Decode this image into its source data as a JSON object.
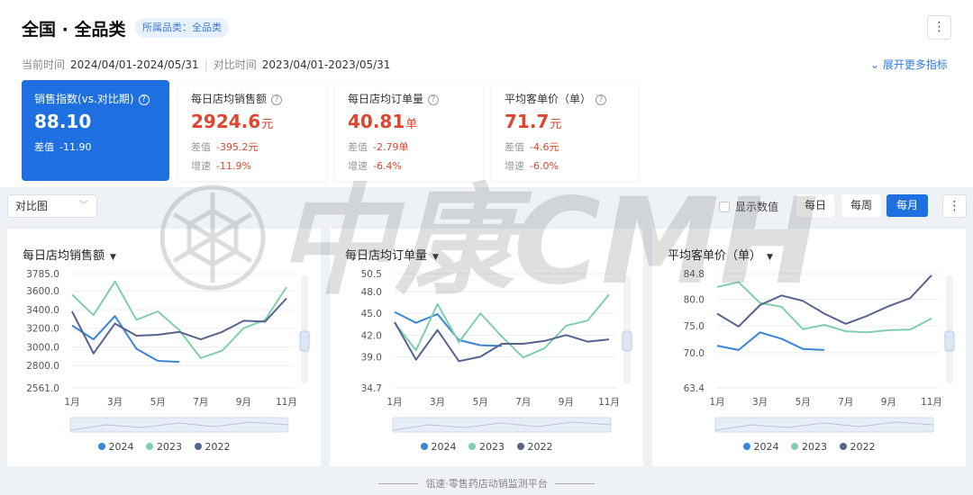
{
  "header": {
    "title": "全国 · 全品类",
    "category_badge": "所属品类：全品类",
    "more_icon": "⋮"
  },
  "timebar": {
    "current_label": "当前时间",
    "current_value": "2024/04/01-2024/05/31",
    "compare_label": "对比时间",
    "compare_value": "2023/04/01-2023/05/31",
    "expand_label": "展开更多指标"
  },
  "kpis": [
    {
      "label": "销售指数(vs.对比期)",
      "value": "88.10",
      "unit": "",
      "diff_label": "差值",
      "diff": "-11.90",
      "growth_label": "",
      "growth": ""
    },
    {
      "label": "每日店均销售额",
      "value": "2924.6",
      "unit": "元",
      "diff_label": "差值",
      "diff": "-395.2元",
      "growth_label": "增速",
      "growth": "-11.9%"
    },
    {
      "label": "每日店均订单量",
      "value": "40.81",
      "unit": "单",
      "diff_label": "差值",
      "diff": "-2.79单",
      "growth_label": "增速",
      "growth": "-6.4%"
    },
    {
      "label": "平均客单价（单）",
      "value": "71.7",
      "unit": "元",
      "diff_label": "差值",
      "diff": "-4.6元",
      "growth_label": "增速",
      "growth": "-6.0%"
    }
  ],
  "controls": {
    "compare_select": "对比图",
    "show_values_label": "显示数值",
    "segments": [
      "每日",
      "每周",
      "每月"
    ],
    "active_segment": "每月"
  },
  "watermark_text": "中康CMH",
  "footer": "瓴速·零售药店动销监测平台",
  "colors": {
    "s2024": "#3a86d6",
    "s2023": "#7fcfae",
    "s2022": "#57638f",
    "primary": "#1e6fe0",
    "negative": "#e0452f"
  },
  "legend": [
    "2024",
    "2023",
    "2022"
  ],
  "chart_data": [
    {
      "type": "line",
      "title": "每日店均销售额",
      "x": [
        "1月",
        "2月",
        "3月",
        "4月",
        "5月",
        "6月",
        "7月",
        "8月",
        "9月",
        "10月",
        "11月"
      ],
      "x_tick_labels": [
        "1月",
        "3月",
        "5月",
        "7月",
        "9月",
        "11月"
      ],
      "y_ticks": [
        3785.0,
        3600.0,
        3400.0,
        3200.0,
        3000.0,
        2800.0,
        2561.0
      ],
      "y_tick_labels": [
        "3785.0",
        "3600.0",
        "3400.0",
        "3200.0",
        "3000.0",
        "2800.0",
        "2561.0"
      ],
      "ylim": [
        2561.0,
        3785.0
      ],
      "grid": true,
      "series": [
        {
          "name": "2024",
          "values": [
            3230,
            3080,
            3330,
            2980,
            2850,
            2840,
            null,
            null,
            null,
            null,
            null
          ]
        },
        {
          "name": "2023",
          "values": [
            3560,
            3340,
            3700,
            3290,
            3380,
            3180,
            2880,
            2960,
            3200,
            3290,
            3640
          ]
        },
        {
          "name": "2022",
          "values": [
            3380,
            2930,
            3250,
            3120,
            3130,
            3160,
            3080,
            3160,
            3280,
            3270,
            3520
          ]
        }
      ]
    },
    {
      "type": "line",
      "title": "每日店均订单量",
      "x": [
        "1月",
        "2月",
        "3月",
        "4月",
        "5月",
        "6月",
        "7月",
        "8月",
        "9月",
        "10月",
        "11月"
      ],
      "x_tick_labels": [
        "1月",
        "3月",
        "5月",
        "7月",
        "9月",
        "11月"
      ],
      "y_ticks": [
        50.5,
        48.0,
        45.0,
        42.0,
        39.0,
        34.7
      ],
      "y_tick_labels": [
        "50.5",
        "48.0",
        "45.0",
        "42.0",
        "39.0",
        "34.7"
      ],
      "ylim": [
        34.7,
        50.5
      ],
      "grid": true,
      "series": [
        {
          "name": "2024",
          "values": [
            45.2,
            43.7,
            44.9,
            41.3,
            40.6,
            40.5,
            null,
            null,
            null,
            null,
            null
          ]
        },
        {
          "name": "2023",
          "values": [
            43.7,
            39.9,
            46.3,
            41.0,
            45.0,
            41.8,
            38.9,
            40.2,
            43.3,
            44.0,
            47.6
          ]
        },
        {
          "name": "2022",
          "values": [
            43.8,
            38.6,
            42.7,
            38.4,
            39.0,
            40.8,
            40.8,
            41.2,
            42.0,
            41.1,
            41.4
          ]
        }
      ]
    },
    {
      "type": "line",
      "title": "平均客单价（单）",
      "x": [
        "1月",
        "2月",
        "3月",
        "4月",
        "5月",
        "6月",
        "7月",
        "8月",
        "9月",
        "10月",
        "11月"
      ],
      "x_tick_labels": [
        "1月",
        "3月",
        "5月",
        "7月",
        "9月",
        "11月"
      ],
      "y_ticks": [
        84.8,
        80.0,
        75.0,
        70.0,
        63.4
      ],
      "y_tick_labels": [
        "84.8",
        "80.0",
        "75.0",
        "70.0",
        "63.4"
      ],
      "ylim": [
        63.4,
        84.8
      ],
      "grid": true,
      "series": [
        {
          "name": "2024",
          "values": [
            71.3,
            70.5,
            73.8,
            72.6,
            70.7,
            70.5,
            null,
            null,
            null,
            null,
            null
          ]
        },
        {
          "name": "2023",
          "values": [
            82.3,
            83.2,
            79.3,
            78.6,
            74.4,
            75.2,
            74.0,
            73.8,
            74.2,
            74.3,
            76.4
          ]
        },
        {
          "name": "2022",
          "values": [
            77.3,
            74.9,
            78.9,
            80.7,
            79.7,
            77.3,
            75.4,
            76.9,
            78.7,
            80.2,
            84.5
          ]
        }
      ]
    }
  ]
}
